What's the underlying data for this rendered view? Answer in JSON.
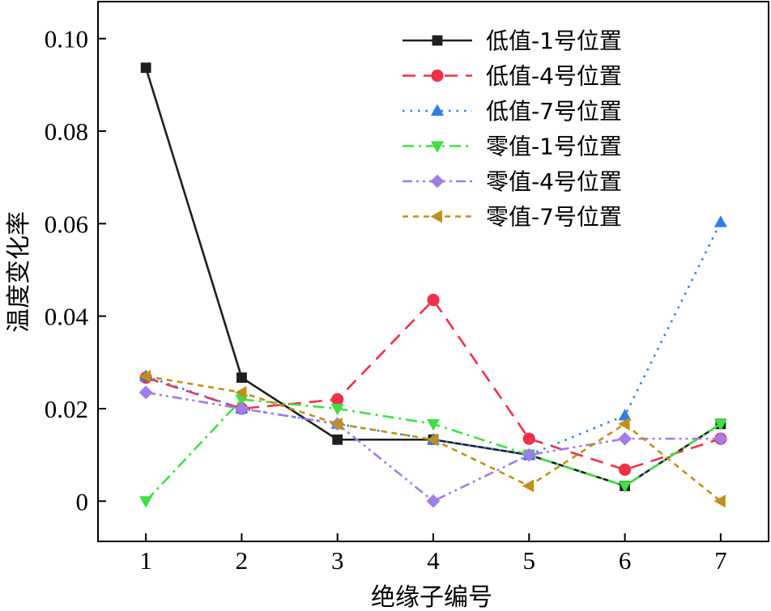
{
  "chart_data": {
    "type": "line",
    "xlabel": "绝缘子编号",
    "ylabel": "温度变化率",
    "x": [
      1,
      2,
      3,
      4,
      5,
      6,
      7
    ],
    "xlim": [
      0.5,
      7.5
    ],
    "ylim": [
      -0.0087,
      0.108
    ],
    "xticks": [
      "1",
      "2",
      "3",
      "4",
      "5",
      "6",
      "7"
    ],
    "yticks": [
      {
        "value": 0,
        "label": "0"
      },
      {
        "value": 0.02,
        "label": "0.02"
      },
      {
        "value": 0.04,
        "label": "0.04"
      },
      {
        "value": 0.06,
        "label": "0.06"
      },
      {
        "value": 0.08,
        "label": "0.08"
      },
      {
        "value": 0.1,
        "label": "0.10"
      }
    ],
    "grid": false,
    "legend_position": "top-right",
    "series": [
      {
        "name": "低值-1号位置",
        "values": [
          0.0937,
          0.0267,
          0.0133,
          0.0133,
          0.01,
          0.0033,
          0.0167
        ],
        "color": "#1f1f1f",
        "marker": "square",
        "dash": "solid"
      },
      {
        "name": "低值-4号位置",
        "values": [
          0.0267,
          0.02,
          0.022,
          0.0435,
          0.0135,
          0.0068,
          0.0135
        ],
        "color": "#f0304a",
        "marker": "circle",
        "dash": "dashed"
      },
      {
        "name": "低值-7号位置",
        "values": [
          0.027,
          0.02,
          0.0167,
          0.0133,
          0.01,
          0.0185,
          0.0603
        ],
        "color": "#2f7de8",
        "marker": "triangle-up",
        "dash": "dotted"
      },
      {
        "name": "零值-1号位置",
        "values": [
          0.0,
          0.022,
          0.02,
          0.0167,
          0.01,
          0.0033,
          0.0167
        ],
        "color": "#3fe043",
        "marker": "triangle-down",
        "dash": "dashdot"
      },
      {
        "name": "零值-4号位置",
        "values": [
          0.0235,
          0.02,
          0.0167,
          0.0,
          0.01,
          0.0135,
          0.0135
        ],
        "color": "#a07de8",
        "marker": "diamond",
        "dash": "dashdotdot"
      },
      {
        "name": "零值-7号位置",
        "values": [
          0.027,
          0.0235,
          0.0167,
          0.0133,
          0.0033,
          0.0167,
          0.0
        ],
        "color": "#c0901a",
        "marker": "triangle-left",
        "dash": "shortdash"
      }
    ]
  }
}
